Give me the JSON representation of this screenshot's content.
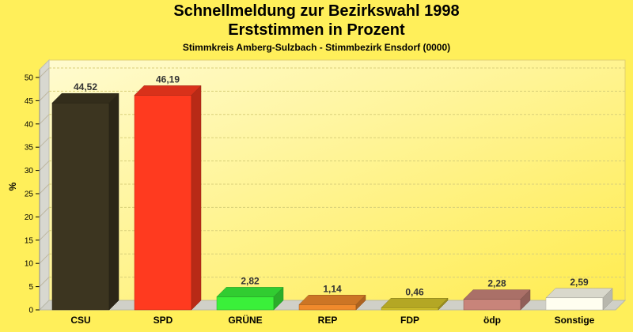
{
  "chart_data": {
    "type": "bar",
    "title_line1": "Schnellmeldung zur Bezirkswahl 1998",
    "title_line2": "Erststimmen in Prozent",
    "subtitle": "Stimmkreis Amberg-Sulzbach - Stimmbezirk Ensdorf (0000)",
    "ylabel": "%",
    "ylim": [
      0,
      50
    ],
    "yticks": [
      "0",
      "5",
      "10",
      "15",
      "20",
      "25",
      "30",
      "35",
      "40",
      "45",
      "50"
    ],
    "categories": [
      "CSU",
      "SPD",
      "GRÜNE",
      "REP",
      "FDP",
      "ödp",
      "Sonstige"
    ],
    "values": [
      44.52,
      46.19,
      2.82,
      1.14,
      0.46,
      2.28,
      2.59
    ],
    "value_labels": [
      "44,52",
      "46,19",
      "2,82",
      "1,14",
      "0,46",
      "2,28",
      "2,59"
    ],
    "colors": [
      "#3c3520",
      "#ff3a1f",
      "#3af03a",
      "#f08a2c",
      "#d4c42a",
      "#c8847a",
      "#fffef0"
    ],
    "grid": true,
    "background": "#ffef5a"
  }
}
